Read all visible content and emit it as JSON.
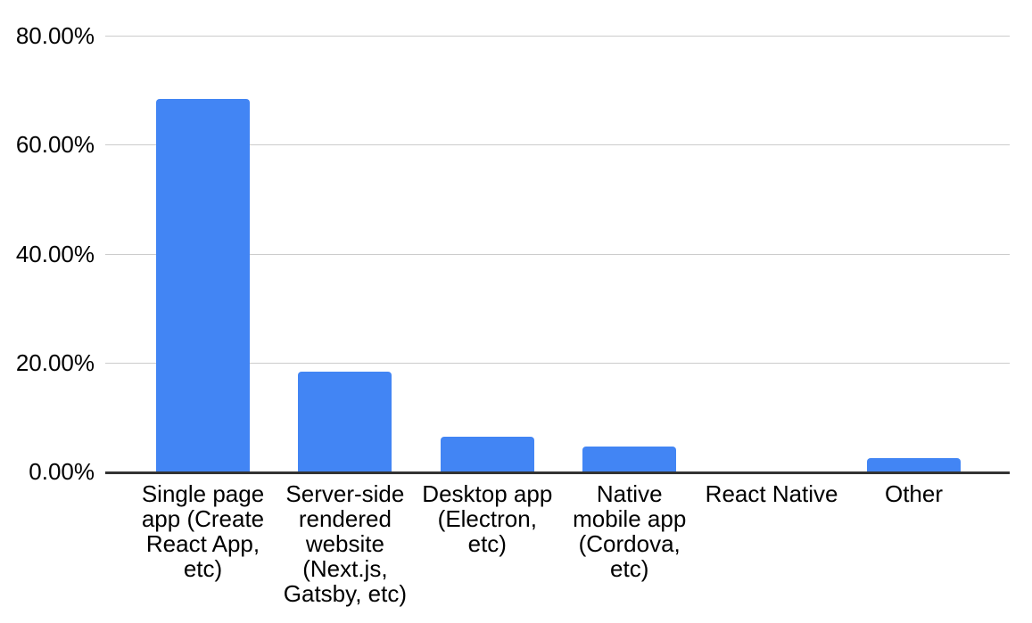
{
  "chart_data": {
    "type": "bar",
    "title": "",
    "xlabel": "",
    "ylabel": "",
    "categories": [
      "Single page app (Create React App, etc)",
      "Server-side rendered website (Next.js, Gatsby, etc)",
      "Desktop app (Electron, etc)",
      "Native mobile app (Cordova, etc)",
      "React Native",
      "Other"
    ],
    "values": [
      68.4,
      18.3,
      6.4,
      4.6,
      0,
      2.5
    ],
    "value_unit": "%",
    "ylim": [
      0,
      80
    ],
    "y_ticks": [
      {
        "value": 80,
        "label": "80.00%"
      },
      {
        "value": 60,
        "label": "60.00%"
      },
      {
        "value": 40,
        "label": "40.00%"
      },
      {
        "value": 20,
        "label": "20.00%"
      },
      {
        "value": 0,
        "label": "0.00%"
      }
    ],
    "grid": true,
    "legend_position": "none",
    "colors": {
      "bar": "#4285f4",
      "gridline": "#cccccc",
      "axis_line": "#333333",
      "text": "#000000",
      "background": "#ffffff"
    }
  }
}
